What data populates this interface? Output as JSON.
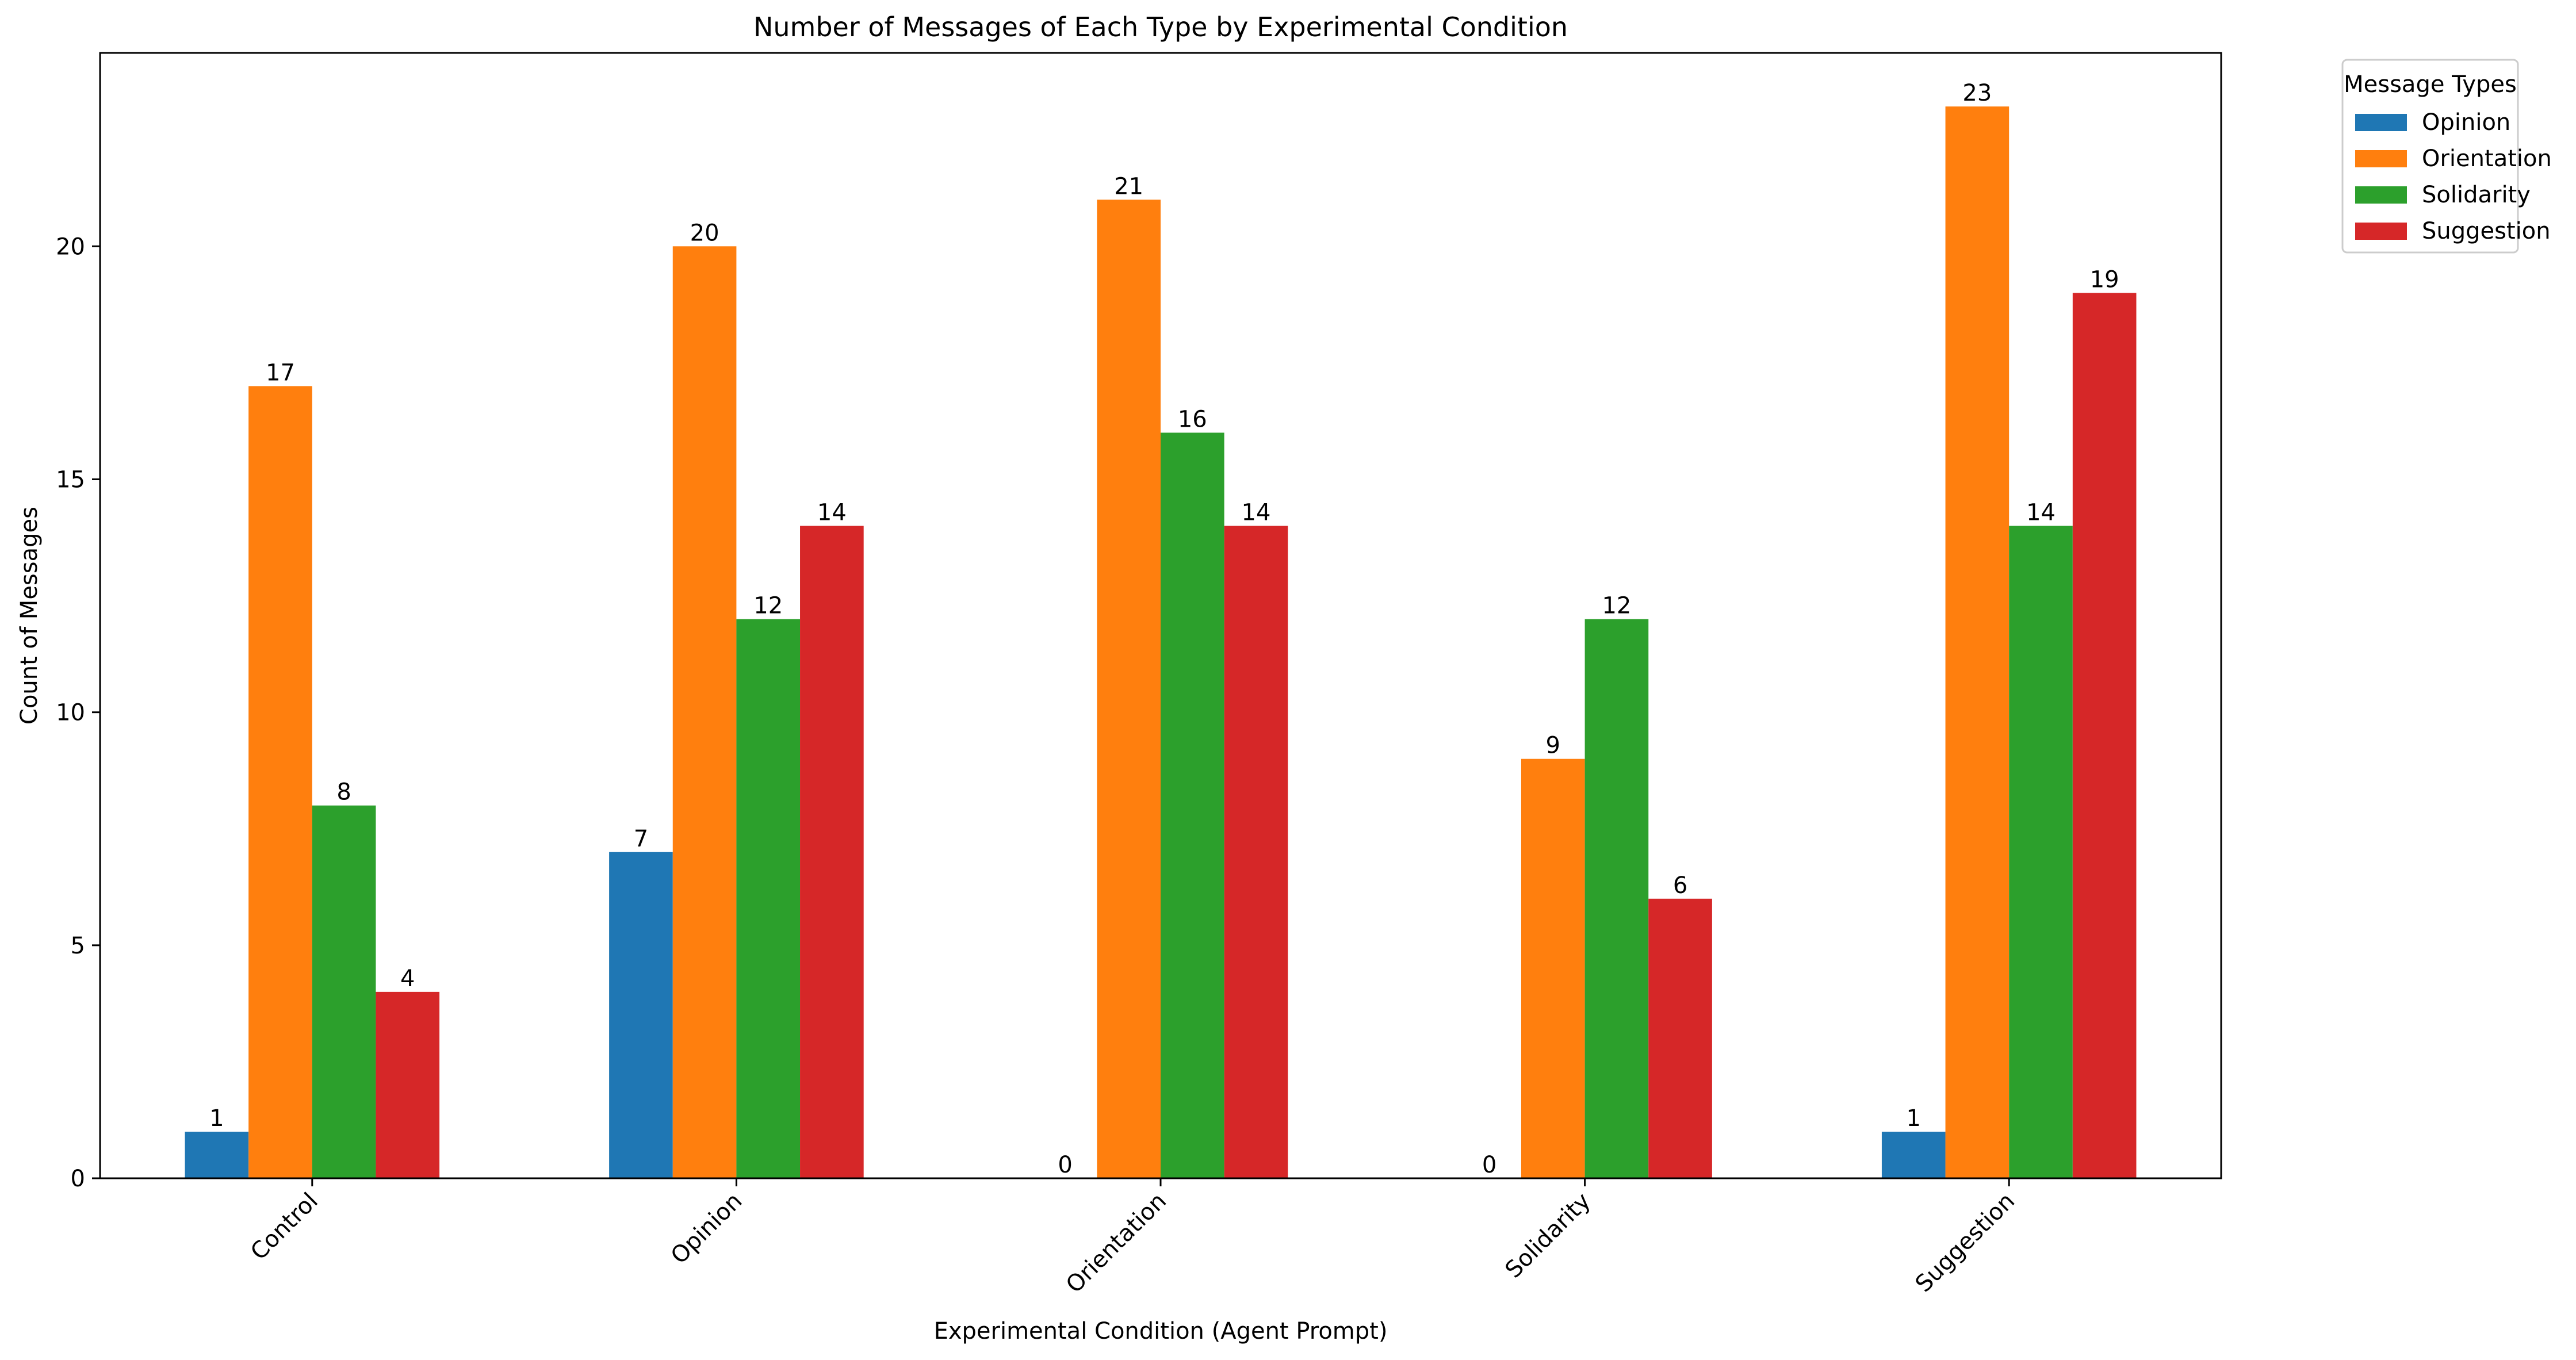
{
  "chart_data": {
    "type": "bar",
    "title": "Number of Messages of Each Type by Experimental Condition",
    "xlabel": "Experimental Condition (Agent Prompt)",
    "ylabel": "Count of Messages",
    "categories": [
      "Control",
      "Opinion",
      "Orientation",
      "Solidarity",
      "Suggestion"
    ],
    "series": [
      {
        "name": "Opinion",
        "color": "#1f77b4",
        "values": [
          1,
          7,
          0,
          0,
          1
        ]
      },
      {
        "name": "Orientation",
        "color": "#ff7f0e",
        "values": [
          17,
          20,
          21,
          9,
          23
        ]
      },
      {
        "name": "Solidarity",
        "color": "#2ca02c",
        "values": [
          8,
          12,
          16,
          12,
          14
        ]
      },
      {
        "name": "Suggestion",
        "color": "#d62728",
        "values": [
          4,
          14,
          14,
          6,
          19
        ]
      }
    ],
    "ylim": [
      0,
      24.15
    ],
    "yticks": [
      0,
      5,
      10,
      15,
      20
    ],
    "xtick_rotation": 45,
    "grid": false,
    "legend": {
      "title": "Message Types",
      "placement": "outside-top-right"
    }
  }
}
